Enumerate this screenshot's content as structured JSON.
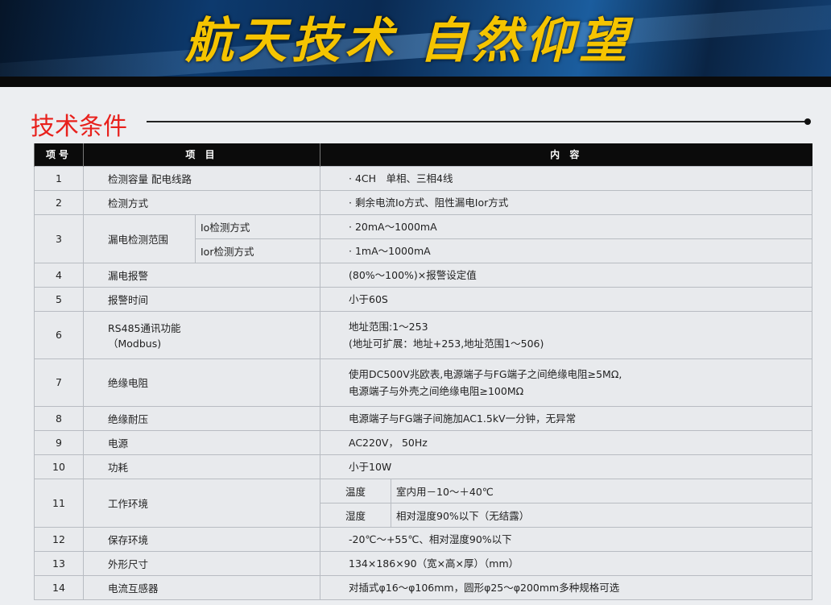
{
  "banner": {
    "slogan": "航天技术 自然仰望"
  },
  "section_title": "技术条件",
  "header": {
    "no": "项号",
    "item": "项 目",
    "content": "内 容"
  },
  "rows": [
    {
      "no": "1",
      "item": "检测容量 配电线路",
      "content": "· 4CH　单相、三相4线"
    },
    {
      "no": "2",
      "item": "检测方式",
      "content": "· 剩余电流Io方式、阻性漏电Ior方式"
    },
    {
      "no": "3",
      "item": "漏电检测范围",
      "sub": [
        {
          "label": "Io检测方式",
          "content": "·  20mA～1000mA"
        },
        {
          "label": "Ior检测方式",
          "content": "·  1mA～1000mA"
        }
      ]
    },
    {
      "no": "4",
      "item": "漏电报警",
      "content": "(80%～100%)×报警设定值"
    },
    {
      "no": "5",
      "item": "报警时间",
      "content": "小于60S"
    },
    {
      "no": "6",
      "item": "RS485通讯功能",
      "item2": "（Modbus)",
      "content": "地址范围:1～253",
      "content2": "(地址可扩展：地址+253,地址范围1～506)"
    },
    {
      "no": "7",
      "item": "绝缘电阻",
      "content": "使用DC500V兆欧表,电源端子与FG端子之间绝缘电阻≥5MΩ,",
      "content2": "电源端子与外壳之间绝缘电阻≥100MΩ"
    },
    {
      "no": "8",
      "item": "绝缘耐压",
      "content": "电源端子与FG端子间施加AC1.5kV一分钟，无异常"
    },
    {
      "no": "9",
      "item": "电源",
      "content": "AC220V，  50Hz"
    },
    {
      "no": "10",
      "item": "功耗",
      "content": "小于10W"
    },
    {
      "no": "11",
      "item": "工作环境",
      "sub": [
        {
          "label": "温度",
          "content": "室内用－10～＋40℃"
        },
        {
          "label": "湿度",
          "content": "相对湿度90%以下（无结露）"
        }
      ]
    },
    {
      "no": "12",
      "item": "保存环境",
      "content": "-20℃～+55℃、相对湿度90%以下"
    },
    {
      "no": "13",
      "item": "外形尺寸",
      "content": "134×186×90（宽×高×厚）（mm）"
    },
    {
      "no": "14",
      "item": "电流互感器",
      "content": "对插式φ16～φ106mm，圆形φ25～φ200mm多种规格可选"
    }
  ]
}
